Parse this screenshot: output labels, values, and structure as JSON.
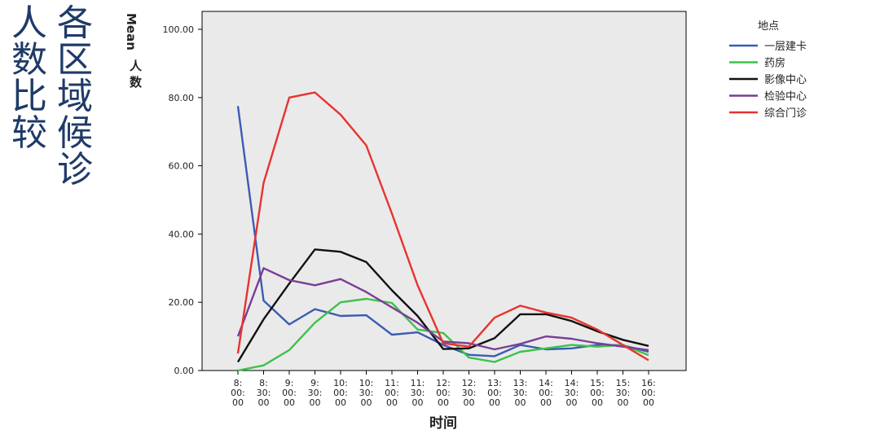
{
  "slide_title": {
    "col1": [
      "人",
      "数",
      "比",
      "较"
    ],
    "col2": [
      "各",
      "区",
      "域",
      "候",
      "诊"
    ]
  },
  "chart_data": {
    "type": "line",
    "ylabel_en": "Mean",
    "ylabel_cn": [
      "人",
      "数"
    ],
    "xlabel": "时间",
    "ylim": [
      0,
      100
    ],
    "y_ticks": [
      "0.00",
      "20.00",
      "40.00",
      "60.00",
      "80.00",
      "100.00"
    ],
    "y_tick_values": [
      0,
      20,
      40,
      60,
      80,
      100
    ],
    "categories": [
      [
        "8:",
        "00:",
        "00"
      ],
      [
        "8:",
        "30:",
        "00"
      ],
      [
        "9:",
        "00:",
        "00"
      ],
      [
        "9:",
        "30:",
        "00"
      ],
      [
        "10:",
        "00:",
        "00"
      ],
      [
        "10:",
        "30:",
        "00"
      ],
      [
        "11:",
        "00:",
        "00"
      ],
      [
        "11:",
        "30:",
        "00"
      ],
      [
        "12:",
        "00:",
        "00"
      ],
      [
        "12:",
        "30:",
        "00"
      ],
      [
        "13:",
        "00:",
        "00"
      ],
      [
        "13:",
        "30:",
        "00"
      ],
      [
        "14:",
        "00:",
        "00"
      ],
      [
        "14:",
        "30:",
        "00"
      ],
      [
        "15:",
        "00:",
        "00"
      ],
      [
        "15:",
        "30:",
        "00"
      ],
      [
        "16:",
        "00:",
        "00"
      ]
    ],
    "legend_title": "地点",
    "series": [
      {
        "name": "一层建卡",
        "color": "#3b5cb3",
        "values": [
          77.5,
          20.5,
          13.5,
          18.0,
          16.0,
          16.2,
          10.5,
          11.2,
          7.5,
          4.6,
          4.2,
          7.5,
          6.2,
          6.5,
          7.5,
          7.4,
          5.5
        ]
      },
      {
        "name": "药房",
        "color": "#3cc24a",
        "values": [
          0.0,
          1.5,
          6.0,
          14.0,
          20.0,
          21.0,
          19.8,
          12.0,
          11.0,
          3.8,
          2.5,
          5.5,
          6.5,
          7.5,
          7.0,
          7.5,
          4.5
        ]
      },
      {
        "name": "影像中心",
        "color": "#111111",
        "values": [
          2.5,
          15.0,
          25.5,
          35.5,
          34.8,
          31.8,
          23.5,
          16.0,
          6.3,
          6.5,
          9.5,
          16.5,
          16.5,
          14.5,
          11.5,
          9.0,
          7.2
        ]
      },
      {
        "name": "检验中心",
        "color": "#7a3d97",
        "values": [
          10.0,
          30.0,
          26.5,
          25.0,
          26.8,
          23.0,
          18.5,
          14.0,
          8.5,
          8.0,
          6.2,
          7.8,
          10.0,
          9.3,
          8.0,
          7.0,
          6.0
        ]
      },
      {
        "name": "综合门诊",
        "color": "#e8332e",
        "values": [
          5.0,
          55.0,
          80.0,
          81.5,
          75.0,
          66.0,
          46.0,
          25.0,
          8.0,
          7.0,
          15.5,
          19.0,
          17.0,
          15.5,
          12.0,
          7.5,
          3.0
        ]
      }
    ]
  }
}
